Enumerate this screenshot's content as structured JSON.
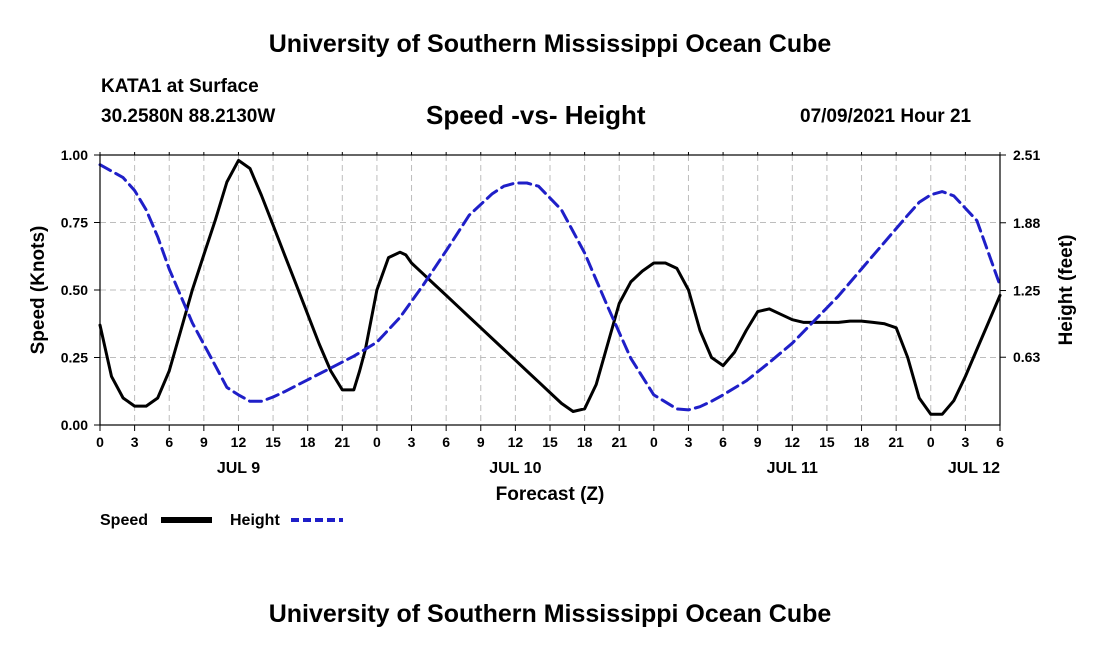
{
  "header": {
    "title_top": "University of Southern Mississippi Ocean Cube",
    "station": "KATA1 at Surface",
    "coords": "30.2580N  88.2130W",
    "subtitle": "Speed -vs- Height",
    "datetime": "07/09/2021 Hour 21",
    "title_bottom": "University of Southern Mississippi Ocean Cube"
  },
  "colors": {
    "speed": "#000000",
    "height": "#1f1fc8",
    "grid": "#bdbdbd"
  },
  "chart_data": {
    "type": "line",
    "xlabel": "Forecast (Z)",
    "ylabel_left": "Speed (Knots)",
    "ylabel_right": "Height (feet)",
    "xlim": [
      0,
      78
    ],
    "ylim_left": [
      0,
      1
    ],
    "ylim_right": [
      0,
      2.51
    ],
    "x_ticks": [
      0,
      3,
      6,
      9,
      12,
      15,
      18,
      21,
      24,
      27,
      30,
      33,
      36,
      39,
      42,
      45,
      48,
      51,
      54,
      57,
      60,
      63,
      66,
      69,
      72,
      75,
      78
    ],
    "x_tick_labels": [
      "0",
      "3",
      "6",
      "9",
      "12",
      "15",
      "18",
      "21",
      "0",
      "3",
      "6",
      "9",
      "12",
      "15",
      "18",
      "21",
      "0",
      "3",
      "6",
      "9",
      "12",
      "15",
      "18",
      "21",
      "0",
      "3",
      "6"
    ],
    "y_left_ticks": [
      0,
      0.25,
      0.5,
      0.75,
      1.0
    ],
    "y_left_tick_labels": [
      "0.00",
      "0.25",
      "0.50",
      "0.75",
      "1.00"
    ],
    "y_right_ticks": [
      0.63,
      1.25,
      1.88,
      2.51
    ],
    "y_right_tick_labels": [
      "0.63",
      "1.25",
      "1.88",
      "2.51"
    ],
    "day_labels": [
      {
        "x": 12,
        "label": "JUL 9"
      },
      {
        "x": 36,
        "label": "JUL 10"
      },
      {
        "x": 60,
        "label": "JUL 11"
      },
      {
        "x": 78,
        "label": "JUL 12"
      }
    ],
    "grid": true,
    "series": [
      {
        "name": "Speed",
        "axis": "left",
        "style": "solid",
        "x": [
          0,
          1,
          2,
          3,
          4,
          5,
          6,
          7,
          8,
          9,
          10,
          11,
          12,
          13,
          14,
          15,
          16,
          17,
          18,
          19,
          20,
          21,
          22,
          22.5,
          23,
          24,
          25,
          26,
          26.5,
          27,
          28,
          29,
          30,
          31,
          32,
          33,
          34,
          35,
          36,
          37,
          38,
          39,
          40,
          41,
          42,
          43,
          44,
          45,
          46,
          47,
          48,
          49,
          50,
          51,
          52,
          53,
          54,
          55,
          56,
          57,
          58,
          59,
          60,
          61,
          62,
          63,
          64,
          65,
          66,
          67,
          68,
          69,
          70,
          71,
          72,
          73,
          74,
          75,
          76,
          77,
          78
        ],
        "values": [
          0.37,
          0.18,
          0.1,
          0.07,
          0.07,
          0.1,
          0.2,
          0.35,
          0.5,
          0.63,
          0.76,
          0.9,
          0.98,
          0.95,
          0.85,
          0.74,
          0.63,
          0.52,
          0.41,
          0.3,
          0.2,
          0.13,
          0.13,
          0.2,
          0.28,
          0.5,
          0.62,
          0.64,
          0.63,
          0.6,
          0.56,
          0.52,
          0.48,
          0.44,
          0.4,
          0.36,
          0.32,
          0.28,
          0.24,
          0.2,
          0.16,
          0.12,
          0.08,
          0.05,
          0.06,
          0.15,
          0.3,
          0.45,
          0.53,
          0.57,
          0.6,
          0.6,
          0.58,
          0.5,
          0.35,
          0.25,
          0.22,
          0.27,
          0.35,
          0.42,
          0.43,
          0.41,
          0.39,
          0.38,
          0.38,
          0.38,
          0.38,
          0.385,
          0.385,
          0.38,
          0.375,
          0.36,
          0.25,
          0.1,
          0.04,
          0.04,
          0.09,
          0.18,
          0.28,
          0.38,
          0.48
        ]
      },
      {
        "name": "Height",
        "axis": "right",
        "style": "dashed",
        "x": [
          0,
          2,
          3,
          4,
          5,
          6,
          8,
          10,
          11,
          12,
          13,
          14,
          15,
          16,
          18,
          20,
          22,
          24,
          26,
          28,
          30,
          32,
          34,
          35,
          36,
          37,
          38,
          40,
          42,
          44,
          46,
          48,
          50,
          51,
          52,
          53,
          54,
          56,
          58,
          60,
          62,
          64,
          66,
          68,
          70,
          71,
          72,
          73,
          74,
          76,
          78
        ],
        "values": [
          2.42,
          2.3,
          2.18,
          2.0,
          1.75,
          1.45,
          0.95,
          0.55,
          0.35,
          0.28,
          0.22,
          0.22,
          0.26,
          0.31,
          0.42,
          0.53,
          0.64,
          0.77,
          1.0,
          1.3,
          1.62,
          1.95,
          2.15,
          2.22,
          2.25,
          2.25,
          2.22,
          2.0,
          1.6,
          1.1,
          0.62,
          0.28,
          0.15,
          0.14,
          0.17,
          0.22,
          0.28,
          0.41,
          0.58,
          0.76,
          0.98,
          1.2,
          1.45,
          1.7,
          1.95,
          2.07,
          2.14,
          2.17,
          2.13,
          1.9,
          1.3
        ]
      }
    ]
  },
  "legend": {
    "speed_label": "Speed",
    "height_label": "Height"
  }
}
